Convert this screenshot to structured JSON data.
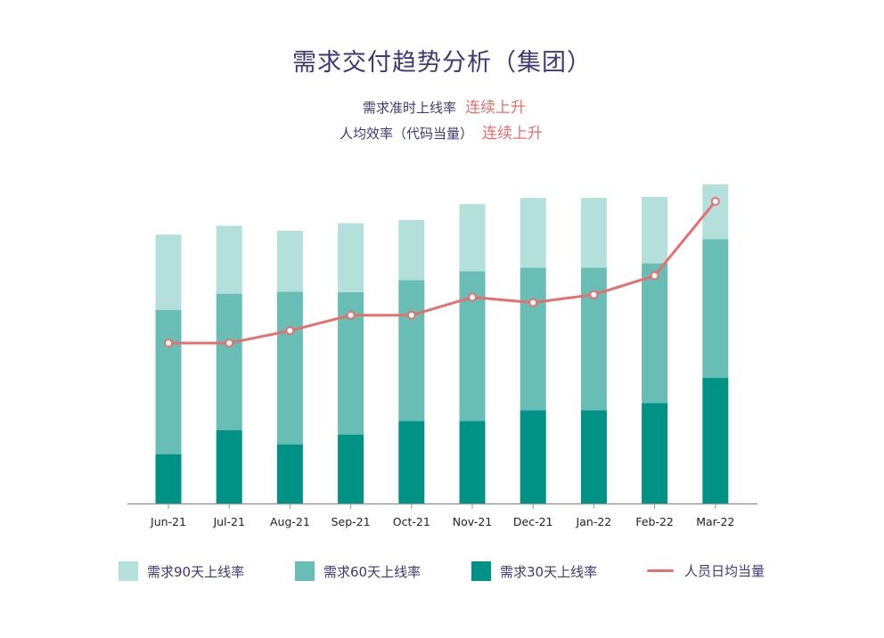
{
  "title": "需求交付趋势分析（集团）",
  "subtitles": [
    {
      "label": "需求准时上线率",
      "trend": "连续上升"
    },
    {
      "label": "人均效率（代码当量）",
      "trend": "连续上升"
    }
  ],
  "colors": {
    "d90": "#b3e0da",
    "d60": "#68bdb4",
    "d30": "#009284",
    "line": "#e6706e",
    "axis": "#999999",
    "text": "#3d3a75"
  },
  "chart_data": {
    "type": "bar",
    "stacked": true,
    "categories": [
      "Jun-21",
      "Jul-21",
      "Aug-21",
      "Sep-21",
      "Oct-21",
      "Nov-21",
      "Dec-21",
      "Jan-22",
      "Feb-22",
      "Mar-22"
    ],
    "ylim": [
      0,
      100
    ],
    "series": [
      {
        "name": "需求30天上线率",
        "values": [
          15.6,
          23.2,
          18.7,
          21.8,
          26.1,
          26.1,
          29.5,
          29.5,
          31.7,
          39.7
        ]
      },
      {
        "name": "需求60天上线率",
        "values": [
          45.6,
          43.1,
          48.2,
          45.0,
          44.5,
          47.3,
          45.0,
          45.0,
          44.2,
          43.9
        ]
      },
      {
        "name": "需求90天上线率",
        "values": [
          23.8,
          21.5,
          19.3,
          21.8,
          19.0,
          21.2,
          22.1,
          22.1,
          21.0,
          17.3
        ]
      }
    ],
    "line": {
      "name": "人员日均当量",
      "values": [
        50.7,
        50.7,
        54.6,
        59.5,
        59.5,
        65.2,
        63.5,
        66.0,
        72.0,
        95.5
      ],
      "ylim": [
        0,
        100
      ]
    },
    "legend": [
      "需求90天上线率",
      "需求60天上线率",
      "需求30天上线率",
      "人员日均当量"
    ]
  }
}
